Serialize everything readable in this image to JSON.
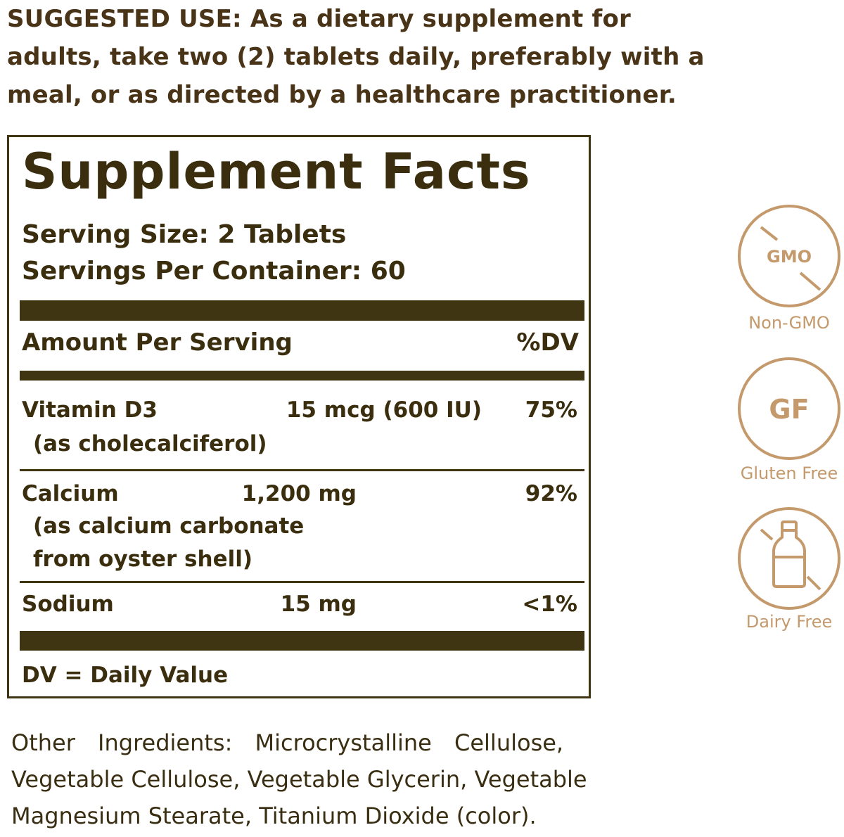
{
  "suggested_use": {
    "lines": [
      "SUGGESTED USE: As a dietary supplement for",
      "adults, take two (2) tablets daily, preferably with a",
      "meal, or as directed by a healthcare practitioner."
    ]
  },
  "supplement_facts": {
    "title": "Supplement Facts",
    "serving_size": "Serving Size: 2 Tablets",
    "servings_per_container": "Servings Per Container: 60",
    "amount_header": "Amount Per Serving",
    "dv_header": "%DV",
    "rows": [
      {
        "name": "Vitamin D3",
        "amount": "15 mcg (600 IU)",
        "dv": "75%",
        "sub": [
          "(as cholecalciferol)"
        ]
      },
      {
        "name": "Calcium",
        "amount": "1,200 mg",
        "dv": "92%",
        "sub": [
          "(as calcium carbonate",
          "from oyster shell)"
        ]
      },
      {
        "name": "Sodium",
        "amount": "15 mg",
        "dv": "<1%",
        "sub": []
      }
    ],
    "footnote": "DV = Daily Value"
  },
  "other_ingredients": {
    "lines": [
      "Other Ingredients: Microcrystalline Cellulose,",
      "Vegetable Cellulose, Vegetable Glycerin, Vegetable",
      "Magnesium Stearate, Titanium Dioxide (color)."
    ]
  },
  "badges": [
    {
      "icon": "no-gmo-icon",
      "icon_text": "GMO",
      "label": "Non-GMO"
    },
    {
      "icon": "gluten-free-icon",
      "icon_text": "GF",
      "label": "Gluten Free"
    },
    {
      "icon": "no-dairy-icon",
      "icon_text": "",
      "label": "Dairy Free"
    }
  ],
  "colors": {
    "text_brown": "#4a3418",
    "panel_dark": "#3f3513",
    "badge_tan": "#c49a6c"
  }
}
